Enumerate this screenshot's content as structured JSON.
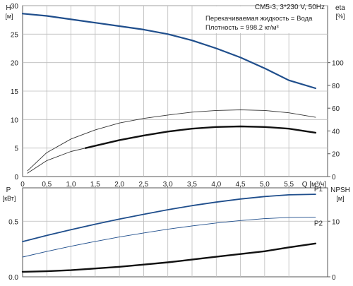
{
  "chart_data": [
    {
      "type": "line",
      "panel": "head-efficiency",
      "legend_box": {
        "pump": "CM5-3, 3*230 V, 50Hz",
        "fluid_line": "Перекачиваемая жидкость = Вода",
        "density_line": "Плотность = 998.2 кг/м³"
      },
      "x": {
        "label": "Q [м³/ч]",
        "range": [
          0,
          6.3
        ],
        "ticks": [
          0,
          0.5,
          1.0,
          1.5,
          2.0,
          2.5,
          3.0,
          3.5,
          4.0,
          4.5,
          5.0,
          5.5
        ],
        "tick_labels": [
          "0",
          "0,5",
          "1,0",
          "1,5",
          "2,0",
          "2,5",
          "3,0",
          "3,5",
          "4,0",
          "4,5",
          "5,0",
          "5,5"
        ]
      },
      "y_left": {
        "label_top": "H",
        "label_unit": "[м]",
        "range": [
          0,
          30
        ],
        "ticks": [
          0,
          5,
          10,
          15,
          20,
          25,
          30
        ],
        "tick_labels": [
          "0",
          "5",
          "10",
          "15",
          "20",
          "25",
          "30"
        ]
      },
      "y_right": {
        "label_top": "eta",
        "label_unit": "[%]",
        "range": [
          0,
          150
        ],
        "ticks": [
          0,
          20,
          40,
          60,
          80,
          100
        ],
        "tick_labels": [
          "0",
          "20",
          "40",
          "60",
          "80",
          "100"
        ]
      },
      "grid": true,
      "series": [
        {
          "id": "H",
          "axis": "left",
          "color": "#1f4e8c",
          "width": 2.2,
          "points": [
            [
              0,
              28.6
            ],
            [
              0.5,
              28.2
            ],
            [
              1.0,
              27.6
            ],
            [
              1.5,
              27.0
            ],
            [
              2.0,
              26.4
            ],
            [
              2.5,
              25.8
            ],
            [
              3.0,
              25.0
            ],
            [
              3.5,
              23.9
            ],
            [
              4.0,
              22.5
            ],
            [
              4.5,
              20.9
            ],
            [
              5.0,
              19.0
            ],
            [
              5.5,
              16.9
            ],
            [
              6.05,
              15.5
            ]
          ],
          "bold_from": 1.3
        },
        {
          "id": "eta-thin",
          "axis": "right",
          "color": "#333333",
          "width": 0.9,
          "points": [
            [
              0.1,
              5
            ],
            [
              0.5,
              21
            ],
            [
              1.0,
              33
            ],
            [
              1.5,
              41
            ],
            [
              2.0,
              47
            ],
            [
              2.5,
              51
            ],
            [
              3.0,
              54
            ],
            [
              3.5,
              56.5
            ],
            [
              4.0,
              58
            ],
            [
              4.5,
              58.5
            ],
            [
              5.0,
              58
            ],
            [
              5.5,
              56
            ],
            [
              6.05,
              52
            ]
          ]
        },
        {
          "id": "eta-lower-thin",
          "axis": "right",
          "color": "#333333",
          "width": 0.9,
          "points": [
            [
              0.1,
              3
            ],
            [
              0.5,
              14
            ],
            [
              1.0,
              22
            ],
            [
              1.3,
              25
            ]
          ]
        },
        {
          "id": "eta",
          "axis": "right",
          "color": "#111111",
          "width": 2.4,
          "points": [
            [
              1.3,
              25
            ],
            [
              1.5,
              27
            ],
            [
              2.0,
              32
            ],
            [
              2.5,
              36
            ],
            [
              3.0,
              39.5
            ],
            [
              3.5,
              42
            ],
            [
              4.0,
              43.5
            ],
            [
              4.5,
              44
            ],
            [
              5.0,
              43.5
            ],
            [
              5.5,
              42
            ],
            [
              6.05,
              38.5
            ]
          ]
        }
      ]
    },
    {
      "type": "line",
      "panel": "power-npsh",
      "x": {
        "range": [
          0,
          6.3
        ]
      },
      "y_left": {
        "label_top": "P",
        "label_unit": "[кВт]",
        "range": [
          0,
          0.8
        ],
        "ticks": [
          0,
          0.5
        ],
        "tick_labels": [
          "0.0",
          "0.5"
        ]
      },
      "y_right": {
        "label_top": "NPSH",
        "label_unit": "[м]",
        "range": [
          0,
          16
        ],
        "ticks": [
          0,
          10
        ],
        "tick_labels": [
          "0",
          "10"
        ]
      },
      "grid": true,
      "series": [
        {
          "id": "P1",
          "name": "P1",
          "axis": "left",
          "color": "#1f4e8c",
          "width": 1.8,
          "points": [
            [
              0,
              0.317
            ],
            [
              0.5,
              0.372
            ],
            [
              1.0,
              0.424
            ],
            [
              1.5,
              0.473
            ],
            [
              2.0,
              0.519
            ],
            [
              2.5,
              0.562
            ],
            [
              3.0,
              0.603
            ],
            [
              3.5,
              0.64
            ],
            [
              4.0,
              0.672
            ],
            [
              4.5,
              0.7
            ],
            [
              5.0,
              0.722
            ],
            [
              5.5,
              0.737
            ],
            [
              6.05,
              0.742
            ]
          ]
        },
        {
          "id": "P2",
          "name": "P2",
          "axis": "left",
          "color": "#1f4e8c",
          "width": 0.9,
          "points": [
            [
              0,
              0.178
            ],
            [
              0.5,
              0.228
            ],
            [
              1.0,
              0.275
            ],
            [
              1.5,
              0.318
            ],
            [
              2.0,
              0.358
            ],
            [
              2.5,
              0.394
            ],
            [
              3.0,
              0.428
            ],
            [
              3.5,
              0.458
            ],
            [
              4.0,
              0.484
            ],
            [
              4.5,
              0.506
            ],
            [
              5.0,
              0.523
            ],
            [
              5.5,
              0.534
            ],
            [
              6.05,
              0.537
            ]
          ]
        },
        {
          "id": "NPSH",
          "axis": "right",
          "color": "#111111",
          "width": 2.4,
          "points": [
            [
              0,
              0.9
            ],
            [
              0.5,
              1.0
            ],
            [
              1.0,
              1.2
            ],
            [
              1.5,
              1.5
            ],
            [
              2.0,
              1.8
            ],
            [
              2.5,
              2.2
            ],
            [
              3.0,
              2.6
            ],
            [
              3.5,
              3.1
            ],
            [
              4.0,
              3.6
            ],
            [
              4.5,
              4.1
            ],
            [
              5.0,
              4.6
            ],
            [
              5.5,
              5.3
            ],
            [
              6.05,
              6.0
            ]
          ]
        }
      ]
    }
  ]
}
